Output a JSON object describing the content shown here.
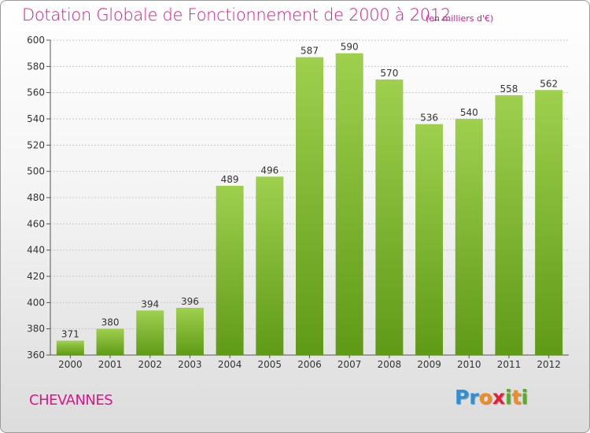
{
  "header": {
    "title": "Dotation Globale de Fonctionnement de 2000 à 2012",
    "unit": "(en milliers d'€)"
  },
  "footer": {
    "commune": "CHEVANNES",
    "logo": {
      "letters": [
        "P",
        "r",
        "o",
        "x",
        "i",
        "t",
        "i"
      ],
      "colors": [
        "#2e8fd6",
        "#2e8fd6",
        "#f28c1e",
        "#e2203a",
        "#5aab2b",
        "#f28c1e",
        "#5aab2b"
      ]
    }
  },
  "colors": {
    "accent": "#e0148a",
    "bar_top": "#9ed04e",
    "bar_bottom": "#5f9a16",
    "grid": "#c8c8c8"
  },
  "chart_data": {
    "type": "bar",
    "categories": [
      "2000",
      "2001",
      "2002",
      "2003",
      "2004",
      "2005",
      "2006",
      "2007",
      "2008",
      "2009",
      "2010",
      "2011",
      "2012"
    ],
    "values": [
      371,
      380,
      394,
      396,
      489,
      496,
      587,
      590,
      570,
      536,
      540,
      558,
      562
    ],
    "ylim": [
      360,
      600
    ],
    "yticks": [
      360,
      380,
      400,
      420,
      440,
      460,
      480,
      500,
      520,
      540,
      560,
      580,
      600
    ],
    "grid": true,
    "legend": "none"
  }
}
